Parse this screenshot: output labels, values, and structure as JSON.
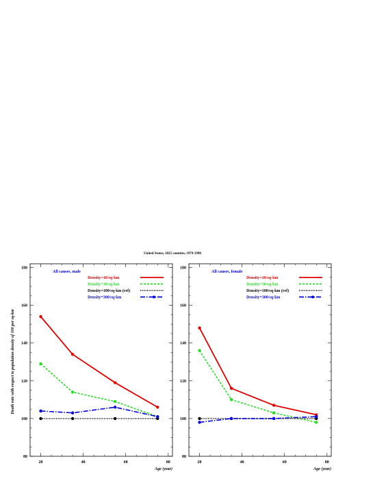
{
  "chart_data": {
    "suptitle": "United States, 1025 counties, 1979-1998",
    "ylabel": "Death rate with respect to population density of 100 per sq-km",
    "colors": {
      "d10": "#e00000",
      "d30": "#22dd22",
      "d100": "#000000",
      "d300": "#0000dd"
    },
    "legend": [
      {
        "key": "d10",
        "label": "Density=10/sq-km",
        "style": "solid"
      },
      {
        "key": "d30",
        "label": "Density=30/sq-km",
        "style": "dashed"
      },
      {
        "key": "d100",
        "label": "Density=100/sq-km (ref)",
        "style": "dotted"
      },
      {
        "key": "d300",
        "label": "Density=300/sq-km",
        "style": "dashdot"
      }
    ],
    "panels": [
      {
        "type": "line",
        "title": "All causes, male",
        "xlabel": "Age (year)",
        "xlim": [
          15,
          82
        ],
        "ylim": [
          80,
          182
        ],
        "xticks": [
          20,
          40,
          60,
          80
        ],
        "yticks": [
          80,
          100,
          120,
          140,
          160,
          180
        ],
        "x": [
          20,
          35,
          55,
          75
        ],
        "series": [
          {
            "key": "d10",
            "values": [
              154,
              134,
              119,
              106
            ]
          },
          {
            "key": "d30",
            "values": [
              129,
              114,
              109,
              101
            ]
          },
          {
            "key": "d100",
            "values": [
              100,
              100,
              100,
              100
            ]
          },
          {
            "key": "d300",
            "values": [
              104,
              103,
              106,
              101
            ]
          }
        ]
      },
      {
        "type": "line",
        "title": "All causes, female",
        "xlabel": "Age (year)",
        "xlim": [
          15,
          82
        ],
        "ylim": [
          80,
          182
        ],
        "xticks": [
          20,
          40,
          60,
          80
        ],
        "yticks": [
          80,
          100,
          120,
          140,
          160,
          180
        ],
        "x": [
          20,
          35,
          55,
          75
        ],
        "series": [
          {
            "key": "d10",
            "values": [
              148,
              116,
              107,
              102
            ]
          },
          {
            "key": "d30",
            "values": [
              136,
              110,
              103,
              98
            ]
          },
          {
            "key": "d100",
            "values": [
              100,
              100,
              100,
              100
            ]
          },
          {
            "key": "d300",
            "values": [
              98,
              100,
              100,
              101
            ]
          }
        ]
      }
    ]
  }
}
